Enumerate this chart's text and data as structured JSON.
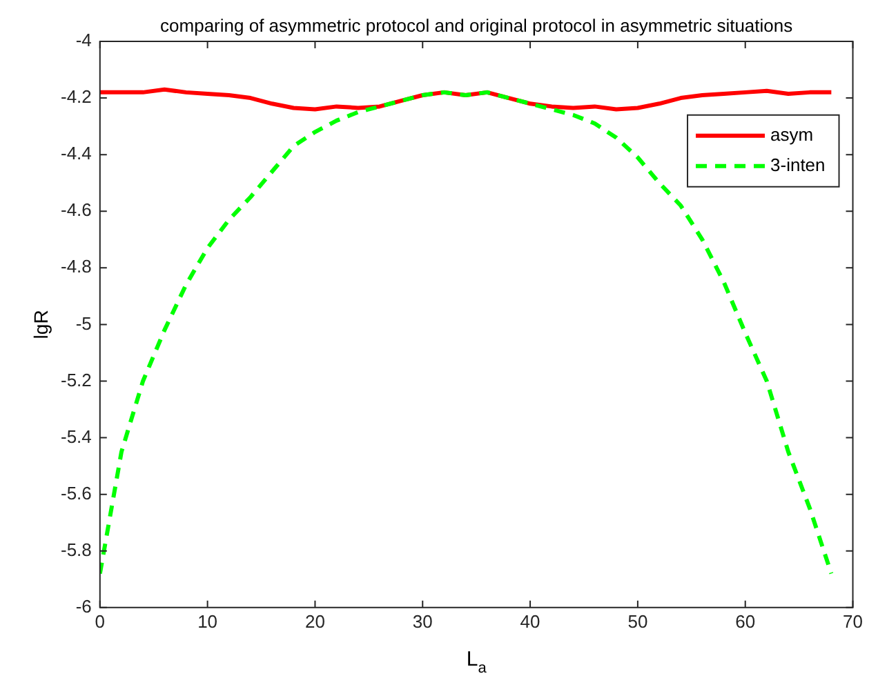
{
  "chart_data": {
    "type": "line",
    "title": "comparing of asymmetric protocol and original protocol in asymmetric situations",
    "xlabel": "L$_{a}$",
    "ylabel": "lgR",
    "x": [
      0,
      2,
      4,
      6,
      8,
      10,
      12,
      14,
      16,
      18,
      20,
      22,
      24,
      26,
      28,
      30,
      32,
      34,
      36,
      38,
      40,
      42,
      44,
      46,
      48,
      50,
      52,
      54,
      56,
      58,
      60,
      62,
      64,
      66,
      68
    ],
    "series": [
      {
        "name": "asym",
        "color": "#ff0000",
        "line_style": "solid",
        "values": [
          -4.18,
          -4.18,
          -4.18,
          -4.17,
          -4.18,
          -4.185,
          -4.19,
          -4.2,
          -4.22,
          -4.235,
          -4.24,
          -4.23,
          -4.235,
          -4.23,
          -4.21,
          -4.19,
          -4.18,
          -4.19,
          -4.18,
          -4.2,
          -4.22,
          -4.23,
          -4.235,
          -4.23,
          -4.24,
          -4.235,
          -4.22,
          -4.2,
          -4.19,
          -4.185,
          -4.18,
          -4.175,
          -4.185,
          -4.18,
          -4.18
        ]
      },
      {
        "name": "3-inten",
        "color": "#00ff00",
        "line_style": "dashed",
        "values": [
          -5.88,
          -5.45,
          -5.2,
          -5.02,
          -4.86,
          -4.73,
          -4.63,
          -4.55,
          -4.46,
          -4.37,
          -4.32,
          -4.28,
          -4.25,
          -4.23,
          -4.21,
          -4.19,
          -4.18,
          -4.19,
          -4.18,
          -4.2,
          -4.22,
          -4.24,
          -4.26,
          -4.29,
          -4.34,
          -4.41,
          -4.5,
          -4.58,
          -4.7,
          -4.85,
          -5.03,
          -5.2,
          -5.45,
          -5.65,
          -5.88
        ]
      }
    ],
    "xlim": [
      0,
      70
    ],
    "xticks": [
      0,
      10,
      20,
      30,
      40,
      50,
      60,
      70
    ],
    "ylim": [
      -6,
      -4
    ],
    "yticks": [
      -6,
      -5.8,
      -5.6,
      -5.4,
      -5.2,
      -5,
      -4.8,
      -4.6,
      -4.4,
      -4.2,
      -4
    ],
    "grid": false,
    "legend": "top right",
    "marker": "none"
  }
}
